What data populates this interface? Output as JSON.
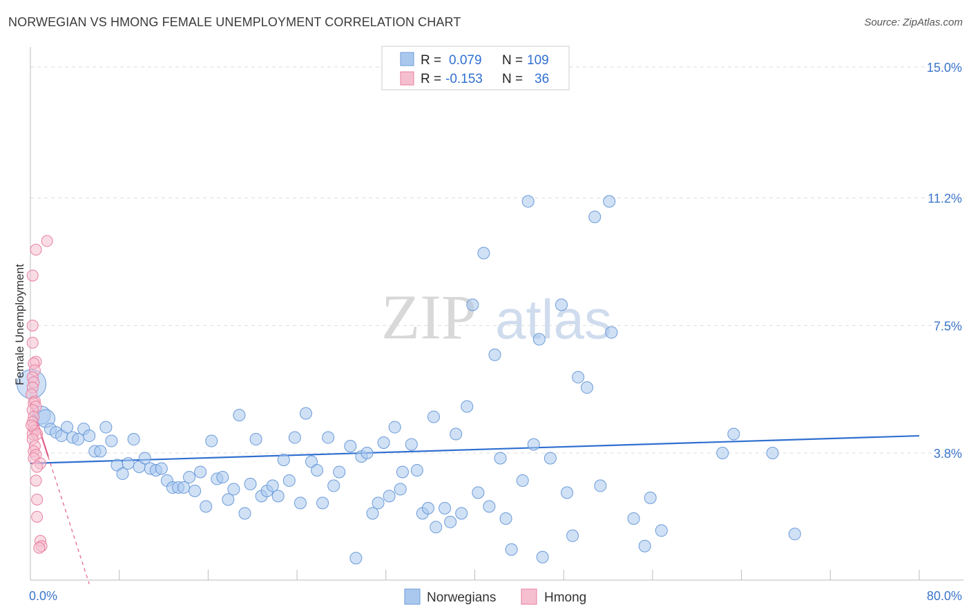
{
  "header": {
    "title": "NORWEGIAN VS HMONG FEMALE UNEMPLOYMENT CORRELATION CHART",
    "source": "Source: ZipAtlas.com"
  },
  "colors": {
    "norwegian_fill": "#aac8ee",
    "norwegian_stroke": "#6a9ad8",
    "norwegian_line": "#2f6fd0",
    "hmong_fill": "#f6bfd0",
    "hmong_stroke": "#e77fa0",
    "hmong_line": "#e05c88",
    "tick_color": "#3b74c9",
    "grid": "#dcdcdc"
  },
  "legend": {
    "rows": [
      {
        "r_label": "R =",
        "r_value": "0.079",
        "n_label": "N =",
        "n_value": "109",
        "series": "Norwegians"
      },
      {
        "r_label": "R =",
        "r_value": "-0.153",
        "n_label": "N =",
        "n_value": "36",
        "series": "Hmong"
      }
    ]
  },
  "bottom_legend": [
    "Norwegians",
    "Hmong"
  ],
  "watermark": {
    "zip": "ZIP",
    "atlas": "atlas"
  },
  "chart_data": {
    "type": "scatter",
    "title": "NORWEGIAN VS HMONG FEMALE UNEMPLOYMENT CORRELATION CHART",
    "xlabel": "",
    "ylabel": "Female Unemployment",
    "xlim": [
      0,
      80
    ],
    "ylim": [
      0,
      15.5
    ],
    "x_tick_labels": [
      {
        "value": 0,
        "label": "0.0%"
      },
      {
        "value": 80,
        "label": "80.0%"
      }
    ],
    "y_tick_labels": [
      {
        "value": 3.8,
        "label": "3.8%"
      },
      {
        "value": 7.5,
        "label": "7.5%"
      },
      {
        "value": 11.2,
        "label": "11.2%"
      },
      {
        "value": 15.0,
        "label": "15.0%"
      }
    ],
    "gridlines_y": [
      3.8,
      7.5,
      11.2,
      15.0
    ],
    "x_minor_ticks": [
      0,
      8,
      16,
      24,
      32,
      40,
      48,
      56,
      64,
      72,
      80
    ],
    "series": [
      {
        "name": "Norwegians",
        "r": 0.079,
        "n": 109,
        "trend": {
          "x": [
            0,
            80
          ],
          "y": [
            3.5,
            4.3
          ]
        },
        "points": [
          [
            0.1,
            5.8
          ],
          [
            1.0,
            4.9
          ],
          [
            1.4,
            4.8
          ],
          [
            1.8,
            4.5
          ],
          [
            2.3,
            4.4
          ],
          [
            2.8,
            4.3
          ],
          [
            3.3,
            4.55
          ],
          [
            3.8,
            4.25
          ],
          [
            4.3,
            4.2
          ],
          [
            4.8,
            4.5
          ],
          [
            5.3,
            4.3
          ],
          [
            5.8,
            3.85
          ],
          [
            6.3,
            3.85
          ],
          [
            6.8,
            4.55
          ],
          [
            7.3,
            4.15
          ],
          [
            7.8,
            3.45
          ],
          [
            8.3,
            3.2
          ],
          [
            8.8,
            3.5
          ],
          [
            9.3,
            4.2
          ],
          [
            9.8,
            3.4
          ],
          [
            10.3,
            3.65
          ],
          [
            10.8,
            3.35
          ],
          [
            11.3,
            3.3
          ],
          [
            11.8,
            3.35
          ],
          [
            12.3,
            3.0
          ],
          [
            12.8,
            2.8
          ],
          [
            13.3,
            2.8
          ],
          [
            13.8,
            2.8
          ],
          [
            14.3,
            3.1
          ],
          [
            14.8,
            2.7
          ],
          [
            15.3,
            3.25
          ],
          [
            15.8,
            2.25
          ],
          [
            16.3,
            4.15
          ],
          [
            16.8,
            3.05
          ],
          [
            17.3,
            3.1
          ],
          [
            17.8,
            2.45
          ],
          [
            18.3,
            2.75
          ],
          [
            18.8,
            4.9
          ],
          [
            19.3,
            2.05
          ],
          [
            19.8,
            2.9
          ],
          [
            20.3,
            4.2
          ],
          [
            20.8,
            2.55
          ],
          [
            21.3,
            2.7
          ],
          [
            21.8,
            2.85
          ],
          [
            22.3,
            2.55
          ],
          [
            22.8,
            3.6
          ],
          [
            23.3,
            3.0
          ],
          [
            23.8,
            4.25
          ],
          [
            24.3,
            2.35
          ],
          [
            24.8,
            4.95
          ],
          [
            25.3,
            3.55
          ],
          [
            25.8,
            3.3
          ],
          [
            26.3,
            2.35
          ],
          [
            26.8,
            4.25
          ],
          [
            27.3,
            2.85
          ],
          [
            27.8,
            3.25
          ],
          [
            28.8,
            4.0
          ],
          [
            29.3,
            0.75
          ],
          [
            29.8,
            3.7
          ],
          [
            30.3,
            3.8
          ],
          [
            30.8,
            2.05
          ],
          [
            31.3,
            2.35
          ],
          [
            31.8,
            4.1
          ],
          [
            32.3,
            2.55
          ],
          [
            32.8,
            4.55
          ],
          [
            33.3,
            2.75
          ],
          [
            33.5,
            3.25
          ],
          [
            34.3,
            4.05
          ],
          [
            34.8,
            3.3
          ],
          [
            35.3,
            2.05
          ],
          [
            35.8,
            2.2
          ],
          [
            36.3,
            4.85
          ],
          [
            36.5,
            1.65
          ],
          [
            37.3,
            2.2
          ],
          [
            37.8,
            1.8
          ],
          [
            38.3,
            4.35
          ],
          [
            38.8,
            2.05
          ],
          [
            39.3,
            5.15
          ],
          [
            39.8,
            8.1
          ],
          [
            40.3,
            2.65
          ],
          [
            40.8,
            9.6
          ],
          [
            41.3,
            2.25
          ],
          [
            41.8,
            6.65
          ],
          [
            42.3,
            3.65
          ],
          [
            42.8,
            1.9
          ],
          [
            43.3,
            1.0
          ],
          [
            44.3,
            3.0
          ],
          [
            44.8,
            11.1
          ],
          [
            45.3,
            4.05
          ],
          [
            45.8,
            7.1
          ],
          [
            46.1,
            0.78
          ],
          [
            46.8,
            3.65
          ],
          [
            47.8,
            8.1
          ],
          [
            48.3,
            2.65
          ],
          [
            48.8,
            1.4
          ],
          [
            49.3,
            6.0
          ],
          [
            50.1,
            5.7
          ],
          [
            50.8,
            10.65
          ],
          [
            51.3,
            2.85
          ],
          [
            52.1,
            11.1
          ],
          [
            52.3,
            7.3
          ],
          [
            54.3,
            1.9
          ],
          [
            55.3,
            1.1
          ],
          [
            55.8,
            2.5
          ],
          [
            56.8,
            1.55
          ],
          [
            62.3,
            3.8
          ],
          [
            63.3,
            4.35
          ],
          [
            66.8,
            3.8
          ],
          [
            68.8,
            1.45
          ]
        ]
      },
      {
        "name": "Hmong",
        "r": -0.153,
        "n": 36,
        "trend": {
          "x": [
            0,
            5.3
          ],
          "y": [
            5.3,
            0.0
          ]
        },
        "trend_solid_until_x": 1.6,
        "points": [
          [
            1.5,
            9.95
          ],
          [
            0.5,
            9.7
          ],
          [
            0.2,
            8.95
          ],
          [
            0.2,
            7.5
          ],
          [
            0.2,
            7.0
          ],
          [
            0.5,
            6.45
          ],
          [
            0.3,
            6.4
          ],
          [
            0.4,
            6.2
          ],
          [
            0.2,
            6.0
          ],
          [
            0.3,
            5.85
          ],
          [
            0.2,
            5.7
          ],
          [
            0.1,
            5.5
          ],
          [
            0.4,
            5.3
          ],
          [
            0.3,
            5.25
          ],
          [
            0.5,
            5.15
          ],
          [
            0.2,
            5.05
          ],
          [
            0.3,
            4.85
          ],
          [
            0.2,
            4.7
          ],
          [
            0.3,
            4.55
          ],
          [
            0.4,
            4.45
          ],
          [
            0.2,
            4.35
          ],
          [
            0.6,
            4.35
          ],
          [
            0.2,
            4.2
          ],
          [
            0.4,
            4.0
          ],
          [
            0.3,
            3.85
          ],
          [
            0.5,
            3.75
          ],
          [
            0.3,
            3.65
          ],
          [
            0.9,
            3.5
          ],
          [
            0.6,
            3.4
          ],
          [
            0.5,
            3.0
          ],
          [
            0.6,
            2.45
          ],
          [
            0.6,
            1.95
          ],
          [
            0.9,
            1.25
          ],
          [
            1.0,
            1.1
          ],
          [
            0.8,
            1.05
          ],
          [
            0.1,
            4.6
          ]
        ]
      }
    ]
  }
}
